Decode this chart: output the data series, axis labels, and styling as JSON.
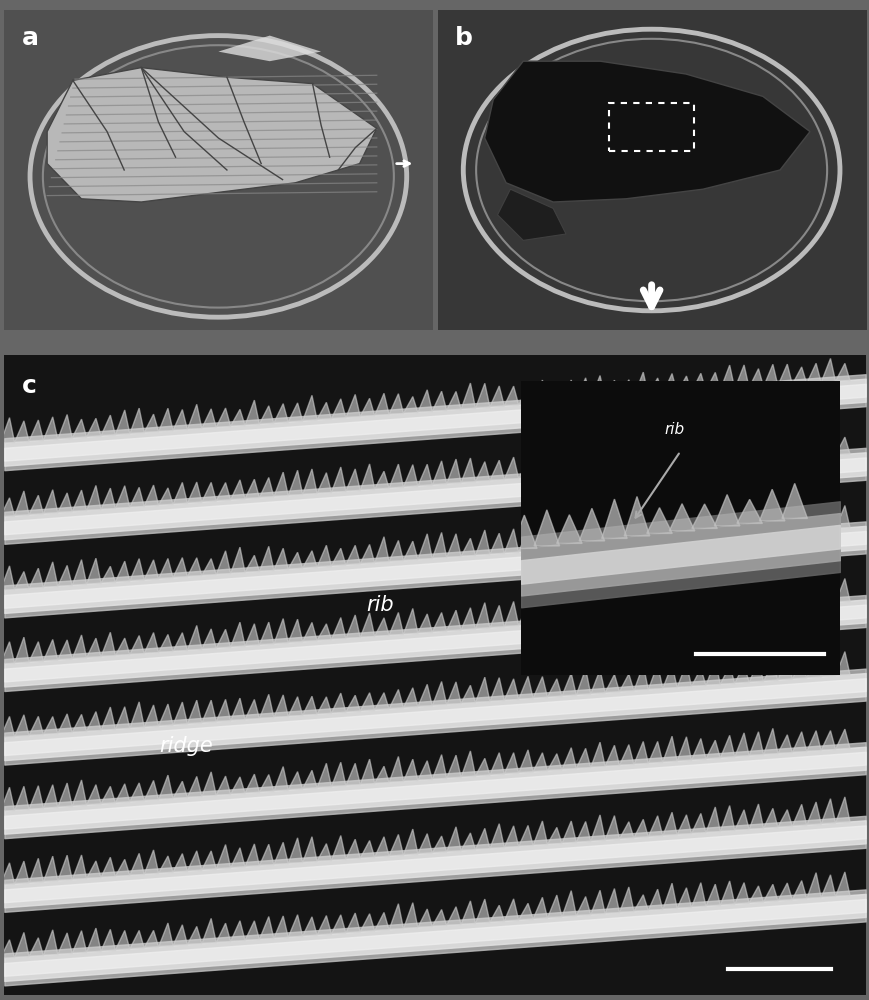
{
  "panel_a_label": "a",
  "panel_b_label": "b",
  "panel_c_label": "c",
  "label_ridge": "ridge",
  "label_rib": "rib",
  "label_rib_inset": "rib",
  "label_fontsize": 18,
  "annotation_fontsize": 14
}
